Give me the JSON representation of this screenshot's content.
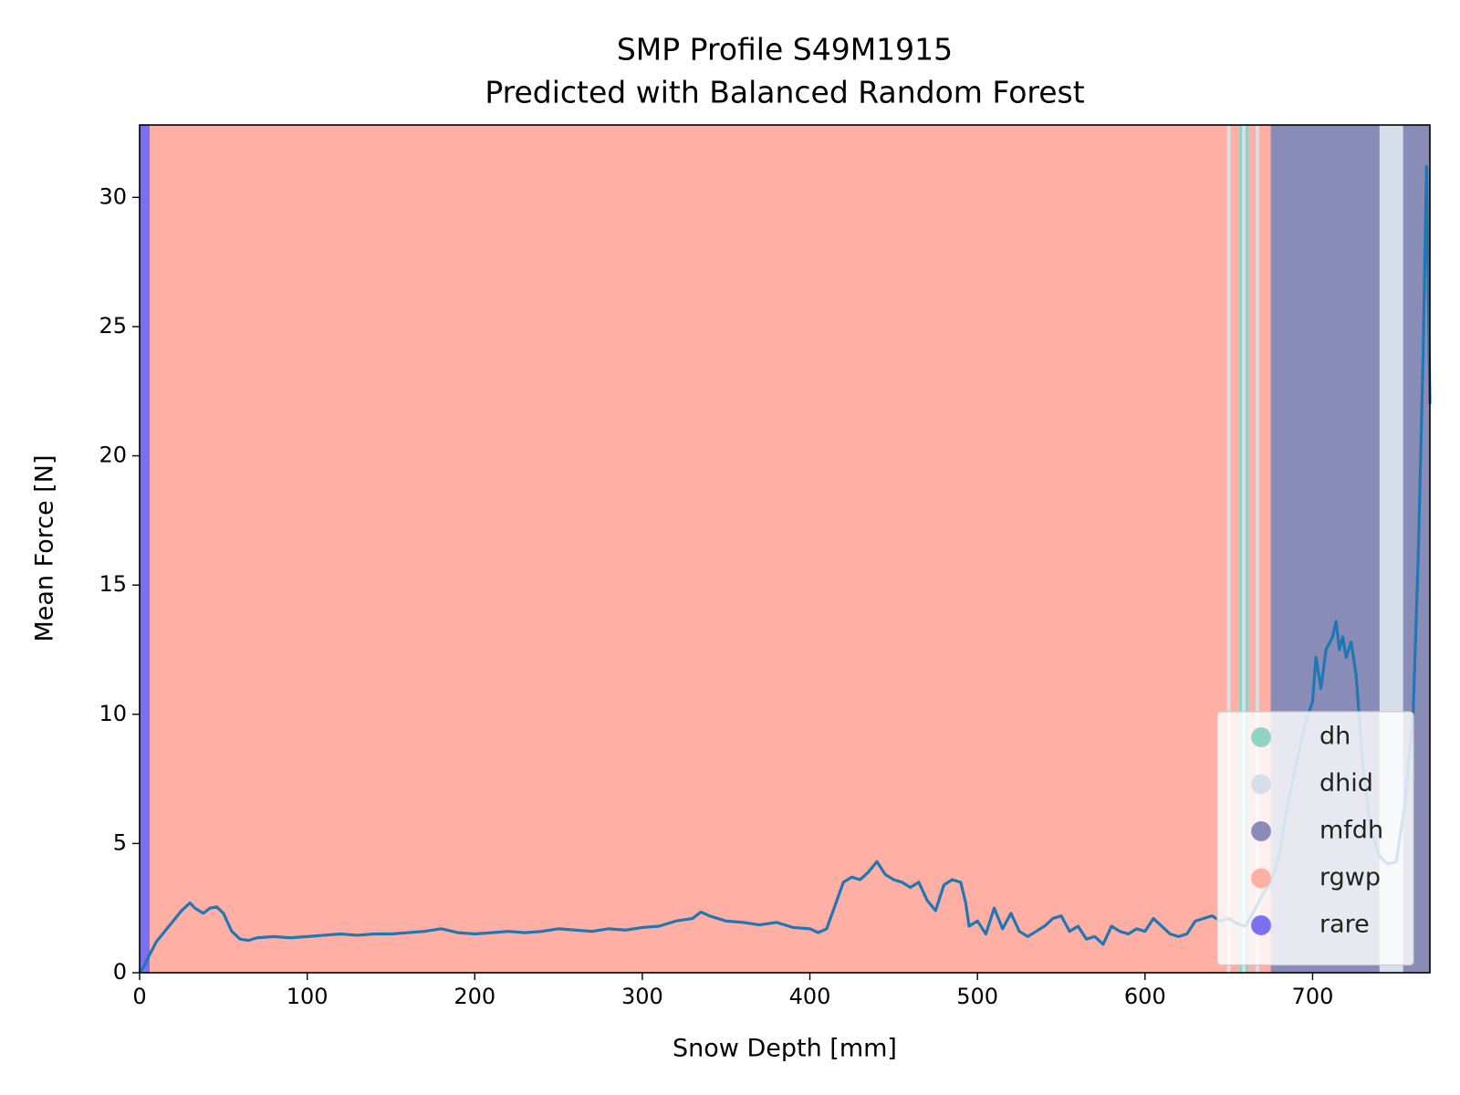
{
  "chart_data": {
    "type": "line",
    "title": "SMP Profile S49M1915",
    "subtitle": "Predicted with Balanced Random Forest",
    "xlabel": "Snow Depth [mm]",
    "ylabel": "Mean Force [N]",
    "xlim": [
      0,
      770
    ],
    "ylim": [
      0,
      32.8
    ],
    "xticks": [
      0,
      100,
      200,
      300,
      400,
      500,
      600,
      700
    ],
    "yticks": [
      0,
      5,
      10,
      15,
      20,
      25,
      30
    ],
    "legend_position": "lower right",
    "classes": [
      {
        "name": "dh",
        "color": "#8fd3c3"
      },
      {
        "name": "dhid",
        "color": "#d5deeb"
      },
      {
        "name": "mfdh",
        "color": "#8a8cb8"
      },
      {
        "name": "rgwp",
        "color": "#ffafa3"
      },
      {
        "name": "rare",
        "color": "#7a70f0"
      }
    ],
    "bands": [
      {
        "start": 0,
        "end": 6,
        "label": "rare"
      },
      {
        "start": 6,
        "end": 649,
        "label": "rgwp"
      },
      {
        "start": 649,
        "end": 651,
        "label": "dhid"
      },
      {
        "start": 651,
        "end": 656,
        "label": "rgwp"
      },
      {
        "start": 656,
        "end": 658,
        "label": "dh"
      },
      {
        "start": 658,
        "end": 660,
        "label": "dhid"
      },
      {
        "start": 660,
        "end": 662,
        "label": "dh"
      },
      {
        "start": 662,
        "end": 666,
        "label": "rgwp"
      },
      {
        "start": 666,
        "end": 668,
        "label": "dhid"
      },
      {
        "start": 668,
        "end": 675,
        "label": "rgwp"
      },
      {
        "start": 675,
        "end": 740,
        "label": "mfdh"
      },
      {
        "start": 740,
        "end": 754,
        "label": "dhid"
      },
      {
        "start": 754,
        "end": 770,
        "label": "mfdh"
      }
    ],
    "color": "#1f77b4",
    "x": [
      0,
      3,
      6,
      10,
      15,
      20,
      25,
      30,
      33,
      38,
      42,
      46,
      50,
      55,
      60,
      65,
      70,
      80,
      90,
      100,
      110,
      120,
      130,
      140,
      150,
      160,
      170,
      180,
      190,
      200,
      210,
      220,
      230,
      240,
      250,
      260,
      270,
      280,
      290,
      300,
      310,
      320,
      330,
      335,
      340,
      350,
      360,
      370,
      380,
      390,
      400,
      405,
      410,
      415,
      420,
      425,
      430,
      435,
      440,
      445,
      450,
      455,
      460,
      465,
      470,
      475,
      480,
      485,
      490,
      493,
      495,
      500,
      505,
      510,
      515,
      520,
      525,
      530,
      535,
      540,
      545,
      550,
      555,
      560,
      565,
      570,
      575,
      580,
      585,
      590,
      595,
      600,
      605,
      610,
      615,
      620,
      625,
      630,
      635,
      640,
      645,
      650,
      655,
      660,
      665,
      670,
      675,
      680,
      685,
      690,
      695,
      700,
      702,
      705,
      708,
      712,
      714,
      716,
      718,
      720,
      723,
      726,
      730,
      735,
      740,
      745,
      750,
      755,
      760,
      763,
      766,
      768,
      770
    ],
    "values": [
      0,
      0.3,
      0.7,
      1.2,
      1.6,
      2.0,
      2.4,
      2.7,
      2.5,
      2.3,
      2.5,
      2.55,
      2.3,
      1.6,
      1.3,
      1.25,
      1.35,
      1.4,
      1.35,
      1.4,
      1.45,
      1.5,
      1.45,
      1.5,
      1.5,
      1.55,
      1.6,
      1.7,
      1.55,
      1.5,
      1.55,
      1.6,
      1.55,
      1.6,
      1.7,
      1.65,
      1.6,
      1.7,
      1.65,
      1.75,
      1.8,
      2.0,
      2.1,
      2.35,
      2.2,
      2.0,
      1.95,
      1.85,
      1.95,
      1.75,
      1.7,
      1.55,
      1.7,
      2.6,
      3.5,
      3.7,
      3.6,
      3.9,
      4.3,
      3.8,
      3.6,
      3.5,
      3.3,
      3.5,
      2.8,
      2.4,
      3.4,
      3.6,
      3.5,
      2.7,
      1.8,
      2.0,
      1.5,
      2.5,
      1.7,
      2.3,
      1.6,
      1.4,
      1.6,
      1.8,
      2.1,
      2.2,
      1.6,
      1.8,
      1.3,
      1.4,
      1.1,
      1.8,
      1.6,
      1.5,
      1.7,
      1.6,
      2.1,
      1.8,
      1.5,
      1.4,
      1.5,
      2.0,
      2.1,
      2.2,
      2.0,
      2.1,
      1.9,
      1.8,
      2.4,
      3.0,
      3.5,
      4.5,
      6.5,
      8.0,
      9.5,
      10.5,
      12.2,
      11.0,
      12.5,
      13.0,
      13.6,
      12.5,
      13.0,
      12.2,
      12.8,
      11.5,
      8.0,
      5.5,
      4.5,
      4.2,
      4.3,
      6.5,
      10.0,
      16.0,
      24.0,
      31.2,
      22.0
    ]
  }
}
